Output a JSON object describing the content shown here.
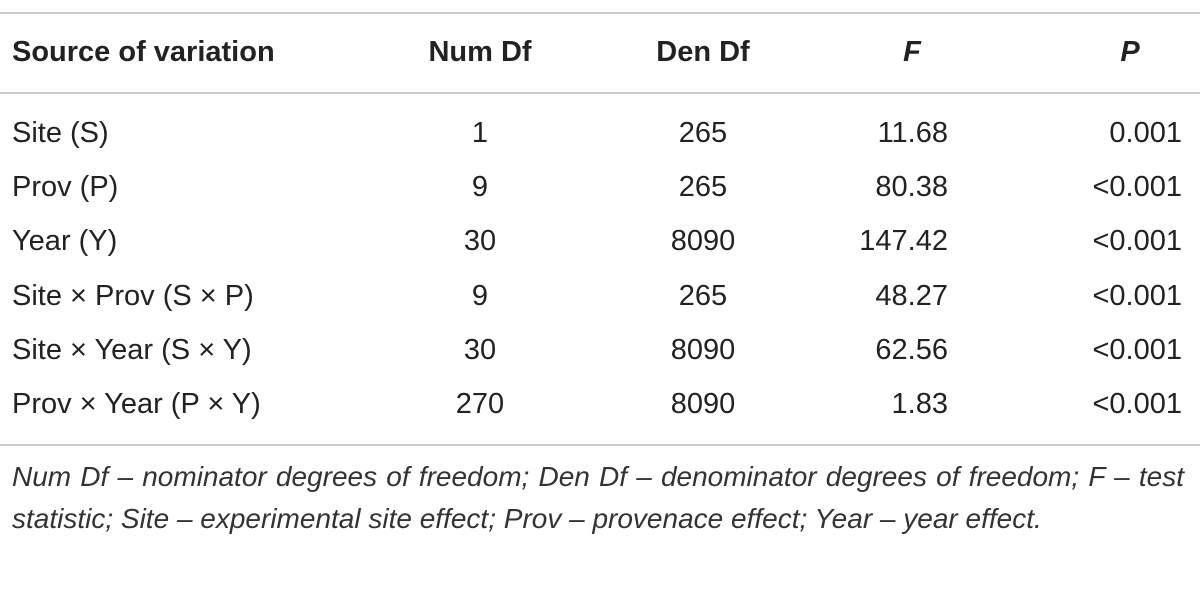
{
  "table": {
    "headers": [
      "Source of variation",
      "Num Df",
      "Den Df",
      "F",
      "P"
    ],
    "rows": [
      [
        "Site (S)",
        1,
        265,
        11.68,
        0.001
      ],
      [
        "Prov (P)",
        9,
        265,
        80.38,
        "<0.001"
      ],
      [
        "Year (Y)",
        30,
        8090,
        147.42,
        "<0.001"
      ],
      [
        "Site × Prov (S × P)",
        9,
        265,
        48.27,
        "<0.001"
      ],
      [
        "Site × Year (S × Y)",
        30,
        8090,
        62.56,
        "<0.001"
      ],
      [
        "Prov × Year (P × Y)",
        270,
        8090,
        1.83,
        "<0.001"
      ]
    ],
    "footnote": "Num Df – nominator degrees of freedom; Den Df – denominator degrees of freedom; F – test statistic; Site – experimental site effect; Prov – provenace effect; Year – year effect."
  }
}
